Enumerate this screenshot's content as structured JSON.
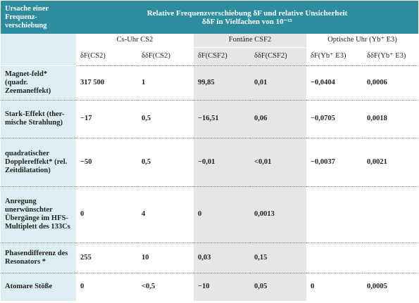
{
  "table": {
    "corner": "Ursache einer Frequenz-verschiebung",
    "title": [
      "Relative Frequenzverschiebung δF und relative Unsicherheit",
      "δδF in Vielfachen von 10⁻¹⁵"
    ],
    "groups": [
      "Cs-Uhr CS2",
      "Fontäne CSF2",
      "Optische Uhr (Yb⁺ E3)"
    ],
    "columns": [
      "δF(CS2)",
      "δδF(CS2)",
      "δF(CSF2)",
      "δδF(CSF2)",
      "δF(Yb⁺ E3)",
      "δδF(Yb⁺ E3)"
    ],
    "rows": [
      [
        "Magnet-feld* (quadr. Zeemaneffekt)",
        "317 500",
        "1",
        "99,85",
        "0,01",
        "−0,0404",
        "0,0006"
      ],
      [
        "Stark-Effekt (ther-mische Strahlung)",
        "−17",
        "0,5",
        "−16,51",
        "0,06",
        "−0,0705",
        "0,0018"
      ],
      [
        "quadratischer Dopplereffekt* (rel. Zeitdilatation)",
        "−50",
        "0,5",
        "−0,01",
        "<0,01",
        "−0,0037",
        "0,0021"
      ],
      [
        "Anregung unerwünschter Übergänge im HFS-Multiplett des 133Cs",
        "0",
        "4",
        "0",
        "0,0013",
        null,
        null
      ],
      [
        "Phasendifferenz des Resonators *",
        "255",
        "10",
        "0,03",
        "0,15",
        null,
        null
      ],
      [
        "Atomare Stöße",
        "0",
        "<0,5",
        "−10",
        "0,05",
        "0",
        "0,0005"
      ]
    ]
  }
}
